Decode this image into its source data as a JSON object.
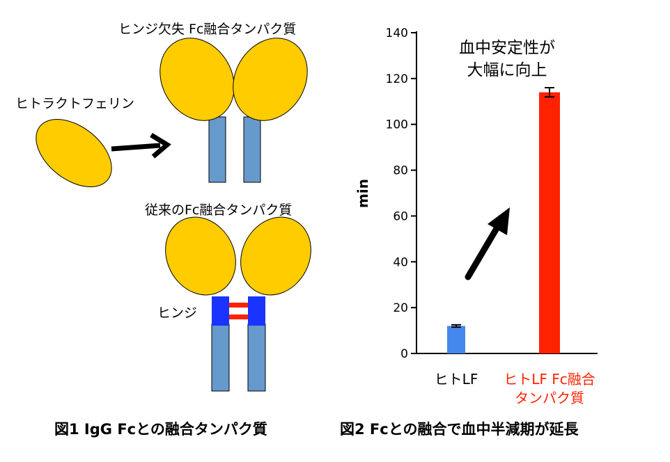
{
  "figure1": {
    "label_hingeless": "ヒンジ欠失 Fc融合タンパク質",
    "label_lactoferrin": "ヒトラクトフェリン",
    "label_conventional": "従来のFc融合タンパク質",
    "label_hinge": "ヒンジ",
    "caption": "図1 IgG Fcとの融合タンパク質",
    "colors": {
      "fab": "#FFCC00",
      "fc": "#6699CC",
      "hinge": "#1A33FF",
      "disulfide": "#FF2200"
    }
  },
  "figure2": {
    "caption": "図2 Fcとの融合で血中半減期が延長",
    "annotation_line1": "血中安定性が",
    "annotation_line2": "大幅に向上"
  },
  "chart_data": {
    "type": "bar",
    "categories": [
      "ヒトLF",
      "ヒトLF Fc融合 タンパク質"
    ],
    "category_lines": [
      [
        "ヒトLF"
      ],
      [
        "ヒトLF Fc融合",
        "タンパク質"
      ]
    ],
    "values": [
      12,
      114
    ],
    "error": [
      0.5,
      2
    ],
    "colors": [
      "#4488EE",
      "#FF2200"
    ],
    "label_colors": [
      "#000000",
      "#FF2200"
    ],
    "ylabel": "min",
    "ylim": [
      0,
      140
    ],
    "yticks": [
      0,
      20,
      40,
      60,
      80,
      100,
      120,
      140
    ],
    "grid": false
  }
}
